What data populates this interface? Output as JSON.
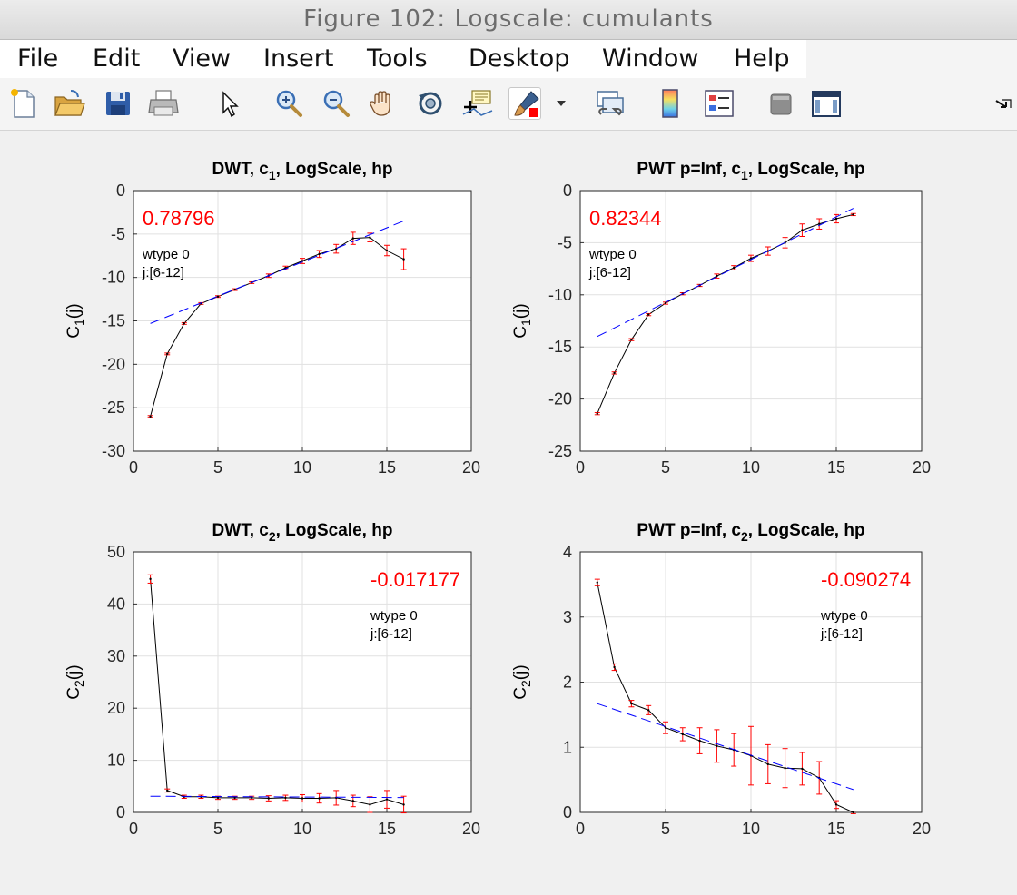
{
  "window": {
    "title": "Figure 102: Logscale: cumulants"
  },
  "menu": [
    "File",
    "Edit",
    "View",
    "Insert",
    "Tools",
    "Desktop",
    "Window",
    "Help"
  ],
  "toolbar": {
    "buttons": [
      "new-figure-icon",
      "open-file-icon",
      "save-icon",
      "print-icon",
      "edit-plot-pointer-icon",
      "zoom-in-icon",
      "zoom-out-icon",
      "pan-hand-icon",
      "rotate-3d-icon",
      "data-cursor-icon",
      "brush-icon",
      "brush-dropdown-icon",
      "link-plot-icon",
      "insert-colorbar-icon",
      "insert-legend-icon",
      "hide-plot-tools-icon",
      "show-plot-tools-icon",
      "dock-arrow-icon"
    ]
  },
  "colors": {
    "fit_line": "#0000ff",
    "data_line": "#000000",
    "errorbar": "#ff0000",
    "annotation_value": "#ff0000",
    "grid": "#e1e1e1"
  },
  "chart_data": [
    {
      "type": "line",
      "title_parts": [
        "DWT, c",
        "1",
        ", LogScale, hp"
      ],
      "ylabel_parts": [
        "C",
        "1",
        "(j)"
      ],
      "xlim": [
        0,
        20
      ],
      "ylim": [
        -30,
        0
      ],
      "xticks": [
        "0",
        "5",
        "10",
        "15",
        "20"
      ],
      "yticks": [
        "0",
        "-5",
        "-10",
        "-15",
        "-20",
        "-25",
        "-30"
      ],
      "grid": true,
      "annotation": {
        "value": "0.78796",
        "wtype": "wtype 0",
        "range": "j:[6-12]",
        "position": "top-left"
      },
      "series": [
        {
          "kind": "data",
          "x": [
            1,
            2,
            3,
            4,
            5,
            6,
            7,
            8,
            9,
            10,
            11,
            12,
            13,
            14,
            15,
            16
          ],
          "y": [
            -26.0,
            -18.8,
            -15.3,
            -13.0,
            -12.2,
            -11.4,
            -10.6,
            -9.8,
            -8.9,
            -8.1,
            -7.3,
            -6.7,
            -5.5,
            -5.4,
            -6.9,
            -7.9
          ],
          "err": [
            0.1,
            0.1,
            0.1,
            0.1,
            0.1,
            0.1,
            0.1,
            0.2,
            0.2,
            0.3,
            0.4,
            0.5,
            0.7,
            0.5,
            0.6,
            1.2
          ]
        },
        {
          "kind": "fit",
          "x": [
            1,
            16
          ],
          "y": [
            -15.3,
            -3.5
          ]
        }
      ]
    },
    {
      "type": "line",
      "title_parts": [
        "PWT p=Inf, c",
        "1",
        ", LogScale, hp"
      ],
      "ylabel_parts": [
        "C",
        "1",
        "(j)"
      ],
      "xlim": [
        0,
        20
      ],
      "ylim": [
        -25,
        0
      ],
      "xticks": [
        "0",
        "5",
        "10",
        "15",
        "20"
      ],
      "yticks": [
        "0",
        "-5",
        "-10",
        "-15",
        "-20",
        "-25"
      ],
      "grid": true,
      "annotation": {
        "value": "0.82344",
        "wtype": "wtype 0",
        "range": "j:[6-12]",
        "position": "top-left"
      },
      "series": [
        {
          "kind": "data",
          "x": [
            1,
            2,
            3,
            4,
            5,
            6,
            7,
            8,
            9,
            10,
            11,
            12,
            13,
            14,
            15,
            16
          ],
          "y": [
            -21.4,
            -17.5,
            -14.3,
            -11.9,
            -10.8,
            -9.9,
            -9.1,
            -8.2,
            -7.4,
            -6.5,
            -5.8,
            -5.0,
            -3.8,
            -3.2,
            -2.7,
            -2.3
          ],
          "err": [
            0.1,
            0.1,
            0.1,
            0.1,
            0.1,
            0.1,
            0.1,
            0.2,
            0.2,
            0.3,
            0.4,
            0.5,
            0.6,
            0.5,
            0.4,
            0.1
          ]
        },
        {
          "kind": "fit",
          "x": [
            1,
            16
          ],
          "y": [
            -14.0,
            -1.7
          ]
        }
      ]
    },
    {
      "type": "line",
      "title_parts": [
        "DWT, c",
        "2",
        ", LogScale, hp"
      ],
      "ylabel_parts": [
        "C",
        "2",
        "(j)"
      ],
      "xlim": [
        0,
        20
      ],
      "ylim": [
        0,
        50
      ],
      "xticks": [
        "0",
        "5",
        "10",
        "15",
        "20"
      ],
      "yticks": [
        "0",
        "10",
        "20",
        "30",
        "40",
        "50"
      ],
      "grid": true,
      "annotation": {
        "value": "-0.017177",
        "wtype": "wtype 0",
        "range": "j:[6-12]",
        "position": "top-right"
      },
      "series": [
        {
          "kind": "data",
          "x": [
            1,
            2,
            3,
            4,
            5,
            6,
            7,
            8,
            9,
            10,
            11,
            12,
            13,
            14,
            15,
            16
          ],
          "y": [
            44.8,
            4.2,
            3.0,
            3.0,
            2.8,
            2.8,
            2.8,
            2.7,
            2.8,
            2.7,
            2.7,
            2.8,
            2.2,
            1.5,
            2.5,
            1.5
          ],
          "err": [
            0.8,
            0.3,
            0.3,
            0.3,
            0.3,
            0.3,
            0.3,
            0.5,
            0.5,
            0.7,
            0.9,
            1.4,
            1.1,
            1.5,
            1.7,
            1.6
          ]
        },
        {
          "kind": "fit",
          "x": [
            1,
            16
          ],
          "y": [
            3.1,
            2.85
          ]
        }
      ]
    },
    {
      "type": "line",
      "title_parts": [
        "PWT p=Inf, c",
        "2",
        ", LogScale, hp"
      ],
      "ylabel_parts": [
        "C",
        "2",
        "(j)"
      ],
      "xlim": [
        0,
        20
      ],
      "ylim": [
        0,
        4
      ],
      "xticks": [
        "0",
        "5",
        "10",
        "15",
        "20"
      ],
      "yticks": [
        "0",
        "1",
        "2",
        "3",
        "4"
      ],
      "grid": true,
      "annotation": {
        "value": "-0.090274",
        "wtype": "wtype 0",
        "range": "j:[6-12]",
        "position": "top-right"
      },
      "series": [
        {
          "kind": "data",
          "x": [
            1,
            2,
            3,
            4,
            5,
            6,
            7,
            8,
            9,
            10,
            11,
            12,
            13,
            14,
            15,
            16
          ],
          "y": [
            3.53,
            2.23,
            1.67,
            1.57,
            1.3,
            1.2,
            1.1,
            1.02,
            0.96,
            0.87,
            0.74,
            0.68,
            0.67,
            0.53,
            0.12,
            0.0
          ],
          "err": [
            0.05,
            0.05,
            0.05,
            0.07,
            0.09,
            0.1,
            0.2,
            0.25,
            0.25,
            0.45,
            0.3,
            0.3,
            0.25,
            0.25,
            0.06,
            0.02
          ]
        },
        {
          "kind": "fit",
          "x": [
            1,
            16
          ],
          "y": [
            1.67,
            0.35
          ]
        }
      ]
    }
  ]
}
